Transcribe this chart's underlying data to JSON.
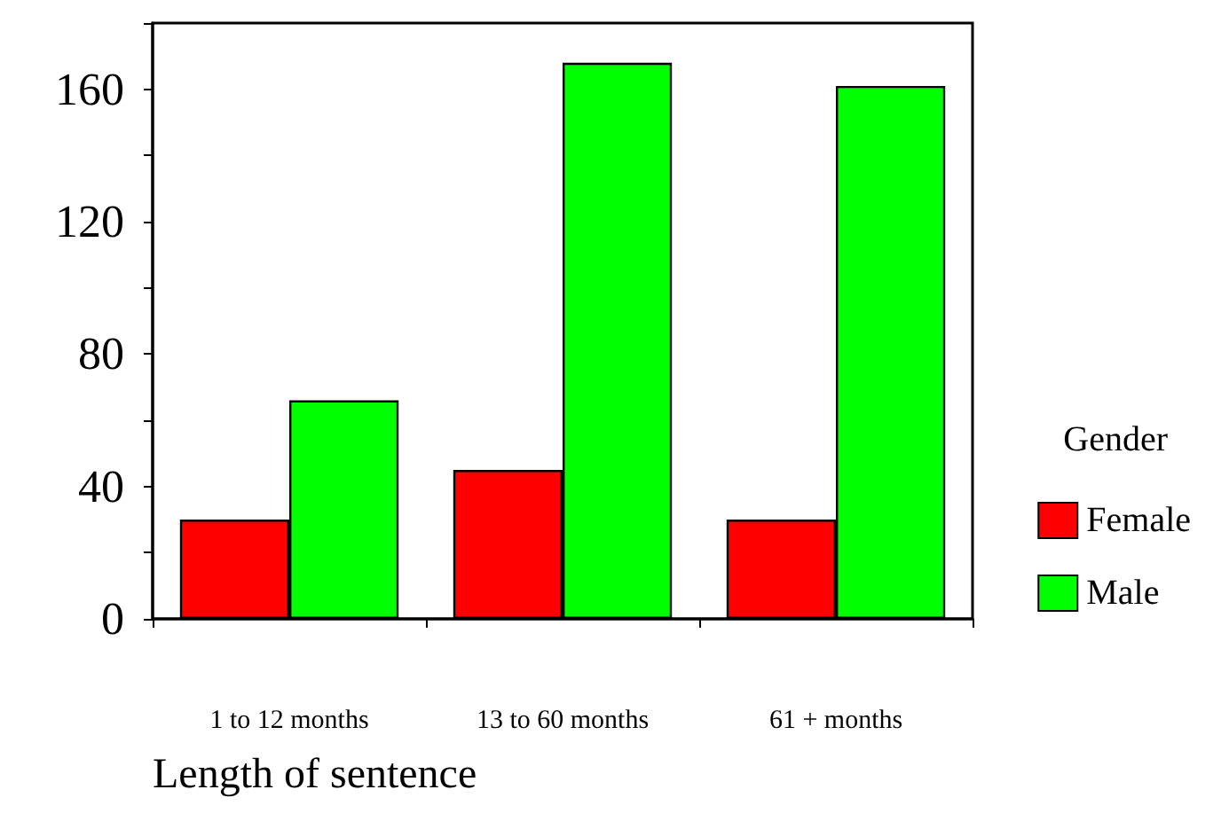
{
  "chart_data": {
    "type": "bar",
    "xlabel": "Length of sentence",
    "legend_title": "Gender",
    "categories": [
      "1 to 12 months",
      "13 to 60 months",
      "61 + months"
    ],
    "series": [
      {
        "name": "Female",
        "color": "#ff0000",
        "values": [
          30,
          45,
          30
        ]
      },
      {
        "name": "Male",
        "color": "#00ff00",
        "values": [
          66,
          168,
          161
        ]
      }
    ],
    "ylim": [
      0,
      180
    ],
    "yticks": [
      0,
      {
        "value": 20,
        "label": null
      },
      40,
      {
        "value": 60,
        "label": null
      },
      80,
      {
        "value": 100,
        "label": null
      },
      120,
      {
        "value": 140,
        "label": null
      },
      160,
      {
        "value": 180,
        "label": null
      }
    ],
    "grid": false,
    "legend": "right"
  }
}
